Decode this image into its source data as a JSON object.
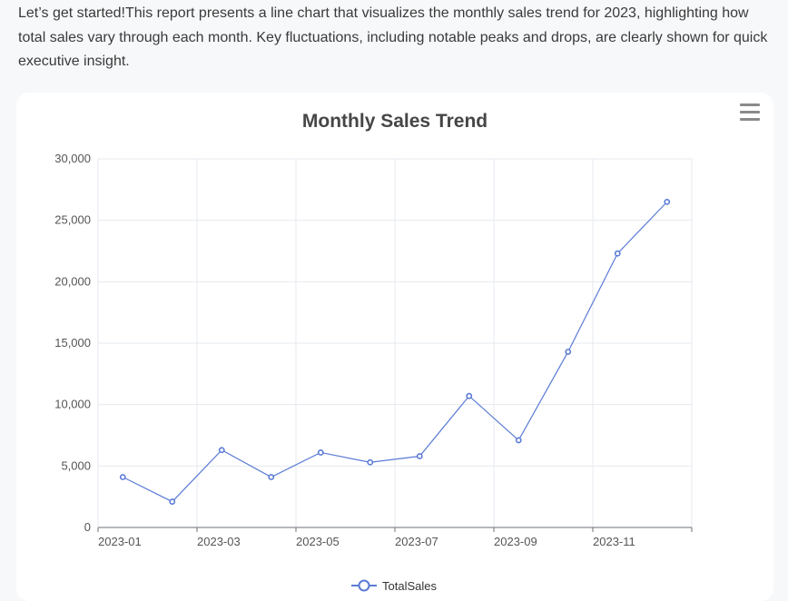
{
  "intro_text": "Let’s get started!This report presents a line chart that visualizes the monthly sales trend for 2023, highlighting how total sales vary through each month. Key fluctuations, including notable peaks and drops, are clearly shown for quick executive insight.",
  "toolbox": {
    "icon": "hamburger-menu-icon"
  },
  "chart_data": {
    "type": "line",
    "title": "Monthly Sales Trend",
    "xlabel": "",
    "ylabel": "",
    "x": [
      "2023-01",
      "2023-02",
      "2023-03",
      "2023-04",
      "2023-05",
      "2023-06",
      "2023-07",
      "2023-08",
      "2023-09",
      "2023-10",
      "2023-11",
      "2023-12"
    ],
    "x_tick_labels": [
      "2023-01",
      "2023-03",
      "2023-05",
      "2023-07",
      "2023-09",
      "2023-11"
    ],
    "y_tick_labels": [
      "0",
      "5,000",
      "10,000",
      "15,000",
      "20,000",
      "25,000",
      "30,000"
    ],
    "series": [
      {
        "name": "TotalSales",
        "values": [
          4100,
          2100,
          6300,
          4100,
          6100,
          5300,
          5800,
          10700,
          7100,
          14300,
          22300,
          26500
        ]
      }
    ],
    "ylim": [
      0,
      30000
    ],
    "grid": true,
    "legend": "bottom-center",
    "colors": {
      "line": "#5b7bd5",
      "grid": "#e6e9ef",
      "axis": "#6e7079"
    }
  }
}
